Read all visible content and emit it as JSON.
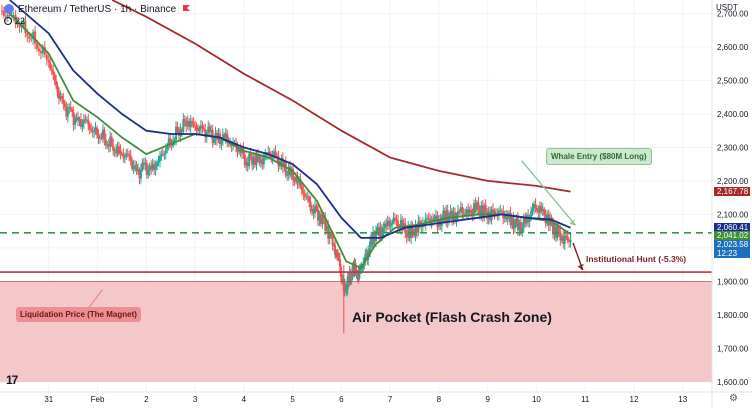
{
  "header": {
    "symbol": "Ethereum / TetherUS · 1h · Binance",
    "indicator_count": "22",
    "currency": "USDT"
  },
  "icons": {
    "symbol": "ethereum-icon",
    "flag": "flag-icon",
    "visibility": "eye-icon",
    "logo": "tradingview-logo",
    "settings": "gear-icon"
  },
  "colors": {
    "up": "#26a69a",
    "down": "#ef5350",
    "ma_fast": "#3f8f3a",
    "ma_mid": "#1c2e8c",
    "ma_slow": "#a8292b",
    "zone": "#f4c7c9",
    "level_line": "#b23a3f",
    "dashed_line": "#2e9d3a"
  },
  "annotations": {
    "whale": "Whale Entry ($80M Long)",
    "liquidation": "Liquidation Price (The Magnet)",
    "hunt": "Institutional Hunt (-5.3%)",
    "zone": "Air Pocket (Flash Crash Zone)",
    "settings_glyph": "⚙",
    "logo_text": "17"
  },
  "price_labels": {
    "ma_slow": "2,167.78",
    "ma_mid": "2,060.41",
    "ma_fast": "2,041.02",
    "last": "2,023.58",
    "countdown": "12:23"
  },
  "chart_data": {
    "type": "candlestick",
    "symbol": "ETHUSDT",
    "interval": "1h",
    "x_tick_labels": [
      "31",
      "Feb",
      "2",
      "3",
      "4",
      "5",
      "6",
      "7",
      "8",
      "9",
      "10",
      "11",
      "12",
      "13"
    ],
    "y_ticks": [
      1600,
      1700,
      1800,
      1900,
      2000,
      2100,
      2200,
      2300,
      2400,
      2500,
      2600,
      2700
    ],
    "y_tick_labels": [
      "1,600.00",
      "1,700.00",
      "1,800.00",
      "1,900.00",
      "2,000.00",
      "2,100.00",
      "2,200.00",
      "2,300.00",
      "2,400.00",
      "2,500.00",
      "2,600.00",
      "2,700.00"
    ],
    "ylim": [
      1570,
      2740
    ],
    "xlim_days": [
      -1,
      13.6
    ],
    "closes": [
      [
        -1.0,
        2700
      ],
      [
        -0.8,
        2695
      ],
      [
        -0.6,
        2670
      ],
      [
        -0.4,
        2640
      ],
      [
        -0.2,
        2600
      ],
      [
        0.0,
        2560
      ],
      [
        0.15,
        2480
      ],
      [
        0.3,
        2420
      ],
      [
        0.45,
        2400
      ],
      [
        0.6,
        2370
      ],
      [
        0.75,
        2380
      ],
      [
        0.9,
        2350
      ],
      [
        1.05,
        2340
      ],
      [
        1.2,
        2320
      ],
      [
        1.35,
        2300
      ],
      [
        1.5,
        2280
      ],
      [
        1.65,
        2270
      ],
      [
        1.8,
        2220
      ],
      [
        1.95,
        2240
      ],
      [
        2.1,
        2230
      ],
      [
        2.25,
        2260
      ],
      [
        2.4,
        2300
      ],
      [
        2.55,
        2330
      ],
      [
        2.7,
        2360
      ],
      [
        2.85,
        2380
      ],
      [
        3.0,
        2360
      ],
      [
        3.15,
        2350
      ],
      [
        3.3,
        2340
      ],
      [
        3.45,
        2320
      ],
      [
        3.6,
        2330
      ],
      [
        3.75,
        2310
      ],
      [
        3.9,
        2300
      ],
      [
        4.05,
        2260
      ],
      [
        4.2,
        2270
      ],
      [
        4.35,
        2260
      ],
      [
        4.5,
        2280
      ],
      [
        4.65,
        2270
      ],
      [
        4.8,
        2240
      ],
      [
        4.95,
        2220
      ],
      [
        5.1,
        2200
      ],
      [
        5.25,
        2160
      ],
      [
        5.4,
        2120
      ],
      [
        5.55,
        2100
      ],
      [
        5.7,
        2060
      ],
      [
        5.85,
        2000
      ],
      [
        5.95,
        1960
      ],
      [
        6.05,
        1870
      ],
      [
        6.15,
        1900
      ],
      [
        6.25,
        1940
      ],
      [
        6.35,
        1920
      ],
      [
        6.45,
        1960
      ],
      [
        6.55,
        1990
      ],
      [
        6.65,
        2040
      ],
      [
        6.8,
        2050
      ],
      [
        6.95,
        2070
      ],
      [
        7.1,
        2080
      ],
      [
        7.25,
        2060
      ],
      [
        7.4,
        2040
      ],
      [
        7.55,
        2060
      ],
      [
        7.7,
        2080
      ],
      [
        7.85,
        2090
      ],
      [
        8.0,
        2080
      ],
      [
        8.15,
        2100
      ],
      [
        8.3,
        2090
      ],
      [
        8.45,
        2110
      ],
      [
        8.6,
        2100
      ],
      [
        8.75,
        2120
      ],
      [
        8.9,
        2110
      ],
      [
        9.05,
        2100
      ],
      [
        9.2,
        2110
      ],
      [
        9.35,
        2100
      ],
      [
        9.5,
        2080
      ],
      [
        9.65,
        2060
      ],
      [
        9.8,
        2080
      ],
      [
        9.95,
        2120
      ],
      [
        10.1,
        2110
      ],
      [
        10.25,
        2080
      ],
      [
        10.4,
        2050
      ],
      [
        10.55,
        2030
      ],
      [
        10.7,
        2024
      ]
    ],
    "moving_averages": [
      {
        "color": "#3f8f3a",
        "last": 2041.02,
        "points": [
          [
            -0.8,
            2700
          ],
          [
            0,
            2580
          ],
          [
            0.5,
            2440
          ],
          [
            1.0,
            2390
          ],
          [
            1.5,
            2330
          ],
          [
            2.0,
            2280
          ],
          [
            2.5,
            2310
          ],
          [
            3.0,
            2340
          ],
          [
            3.5,
            2330
          ],
          [
            4.0,
            2290
          ],
          [
            4.5,
            2270
          ],
          [
            5.0,
            2230
          ],
          [
            5.5,
            2140
          ],
          [
            5.9,
            2020
          ],
          [
            6.1,
            1960
          ],
          [
            6.4,
            1940
          ],
          [
            6.7,
            2010
          ],
          [
            7.1,
            2060
          ],
          [
            7.6,
            2070
          ],
          [
            8.2,
            2090
          ],
          [
            8.8,
            2100
          ],
          [
            9.3,
            2100
          ],
          [
            9.8,
            2090
          ],
          [
            10.3,
            2080
          ],
          [
            10.7,
            2041
          ]
        ]
      },
      {
        "color": "#1c2e8c",
        "last": 2060.41,
        "points": [
          [
            -0.8,
            2740
          ],
          [
            0,
            2640
          ],
          [
            0.5,
            2530
          ],
          [
            1.0,
            2460
          ],
          [
            1.5,
            2400
          ],
          [
            2.0,
            2350
          ],
          [
            2.5,
            2340
          ],
          [
            3.0,
            2340
          ],
          [
            3.5,
            2330
          ],
          [
            4.0,
            2300
          ],
          [
            4.5,
            2280
          ],
          [
            5.0,
            2250
          ],
          [
            5.5,
            2190
          ],
          [
            6.0,
            2090
          ],
          [
            6.4,
            2030
          ],
          [
            6.8,
            2030
          ],
          [
            7.3,
            2060
          ],
          [
            7.8,
            2070
          ],
          [
            8.3,
            2080
          ],
          [
            8.8,
            2090
          ],
          [
            9.3,
            2100
          ],
          [
            9.8,
            2090
          ],
          [
            10.3,
            2085
          ],
          [
            10.7,
            2060
          ]
        ]
      },
      {
        "color": "#a8292b",
        "last": 2167.78,
        "points": [
          [
            1.3,
            2740
          ],
          [
            2.0,
            2690
          ],
          [
            3.0,
            2610
          ],
          [
            4.0,
            2520
          ],
          [
            5.0,
            2440
          ],
          [
            6.0,
            2350
          ],
          [
            7.0,
            2270
          ],
          [
            8.0,
            2230
          ],
          [
            9.0,
            2200
          ],
          [
            10.0,
            2185
          ],
          [
            10.7,
            2168
          ]
        ]
      }
    ],
    "levels": {
      "dashed_support": 2045,
      "liquidation": 1928,
      "zone_top": 1900,
      "zone_bottom": 1600
    },
    "arrows": [
      {
        "from": [
          9.7,
          2260
        ],
        "to": [
          10.8,
          2068
        ],
        "color": "#8cc592"
      },
      {
        "from": [
          1.1,
          1875
        ],
        "to": [
          0.6,
          1780
        ],
        "color": "#ec8f94"
      },
      {
        "from": [
          10.75,
          2015
        ],
        "to": [
          10.95,
          1935
        ],
        "color": "#7a1f22"
      }
    ]
  }
}
